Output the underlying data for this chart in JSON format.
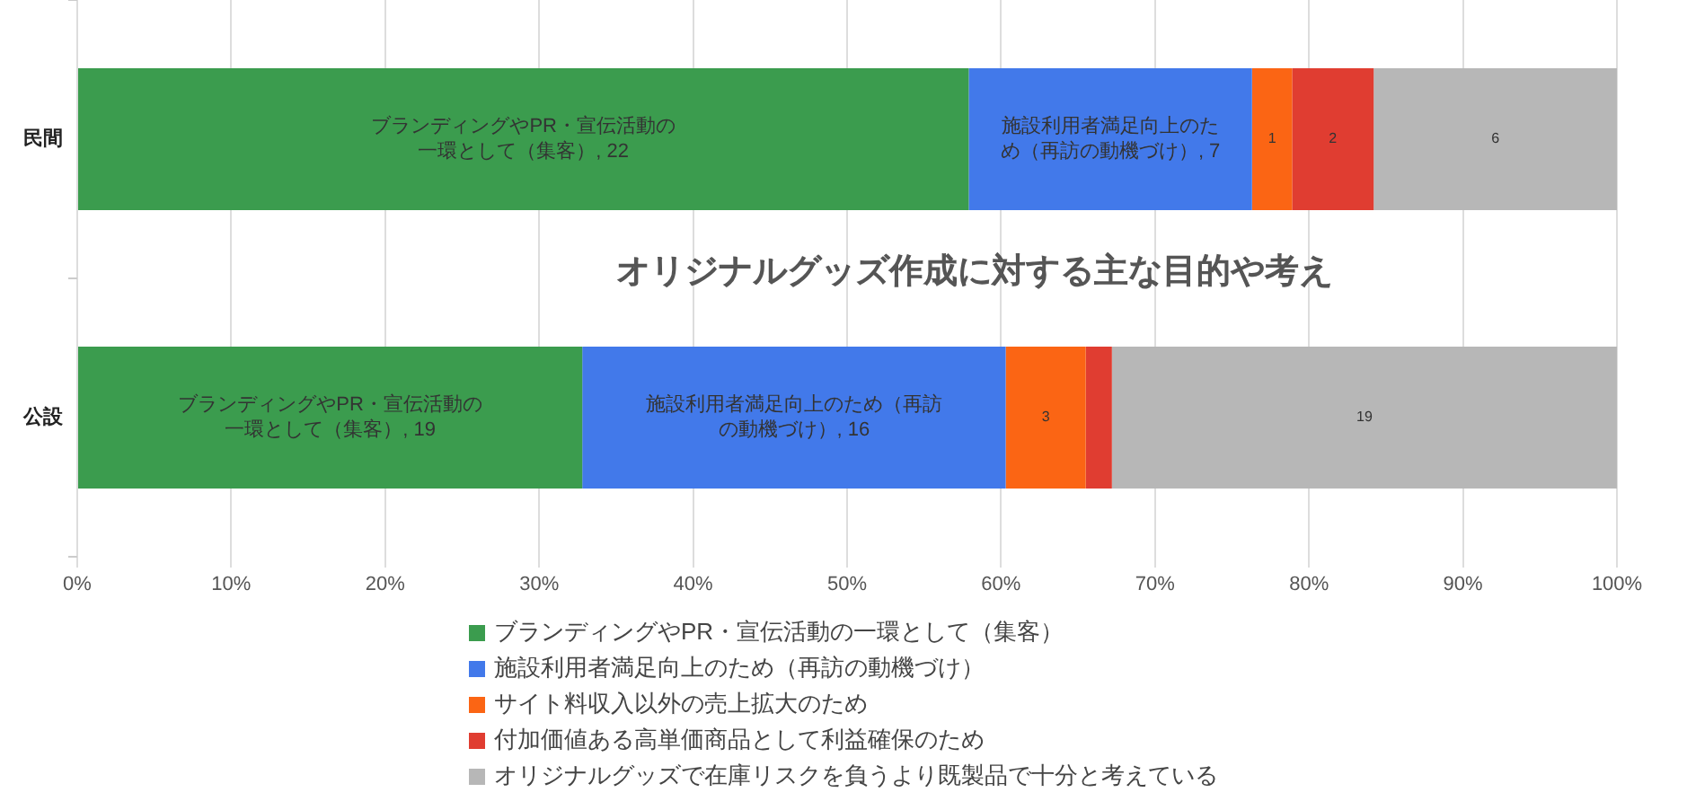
{
  "chart_data": {
    "type": "bar",
    "orientation": "horizontal",
    "stacked": true,
    "title": "オリジナルグッズ作成に対する主な目的や考え",
    "categories": [
      "民間",
      "公設"
    ],
    "series": [
      {
        "name": "ブランディングやPR・宣伝活動の一環として（集客）",
        "color": "#3b9c4e",
        "values": [
          57.9,
          32.8
        ]
      },
      {
        "name": "施設利用者満足向上のため（再訪の動機づけ）",
        "color": "#4279ea",
        "values": [
          18.4,
          27.5
        ]
      },
      {
        "name": "サイト料収入以外の売上拡大のため",
        "color": "#fb6514",
        "values": [
          2.6,
          5.2
        ]
      },
      {
        "name": "付加価値ある高単価商品として利益確保のため",
        "color": "#e03d31",
        "values": [
          5.3,
          1.7
        ]
      },
      {
        "name": "オリジナルグッズで在庫リスクを負うより既製品で十分と考えている",
        "color": "#b7b7b7",
        "values": [
          15.8,
          32.8
        ]
      }
    ],
    "annotations": [
      "ブランディングやPR・宣伝活動の一環として（集客）, 22",
      "施設利用者満足向上のため（再訪の動機づけ）, 7",
      "1",
      "2",
      "6",
      "ブランディングやPR・宣伝活動の一環として（集客）, 19",
      "施設利用者満足向上のため（再訪の動機づけ）, 16",
      "3",
      "19"
    ],
    "xlim": [
      0,
      100
    ],
    "xticks": [
      {
        "value": 0,
        "label": "0%"
      },
      {
        "value": 10,
        "label": "10%"
      },
      {
        "value": 20,
        "label": "20%"
      },
      {
        "value": 30,
        "label": "30%"
      },
      {
        "value": 40,
        "label": "40%"
      },
      {
        "value": 50,
        "label": "50%"
      },
      {
        "value": 60,
        "label": "60%"
      },
      {
        "value": 70,
        "label": "70%"
      },
      {
        "value": 80,
        "label": "80%"
      },
      {
        "value": 90,
        "label": "90%"
      },
      {
        "value": 100,
        "label": "100%"
      }
    ],
    "grid": "x",
    "legend": "bottom"
  }
}
